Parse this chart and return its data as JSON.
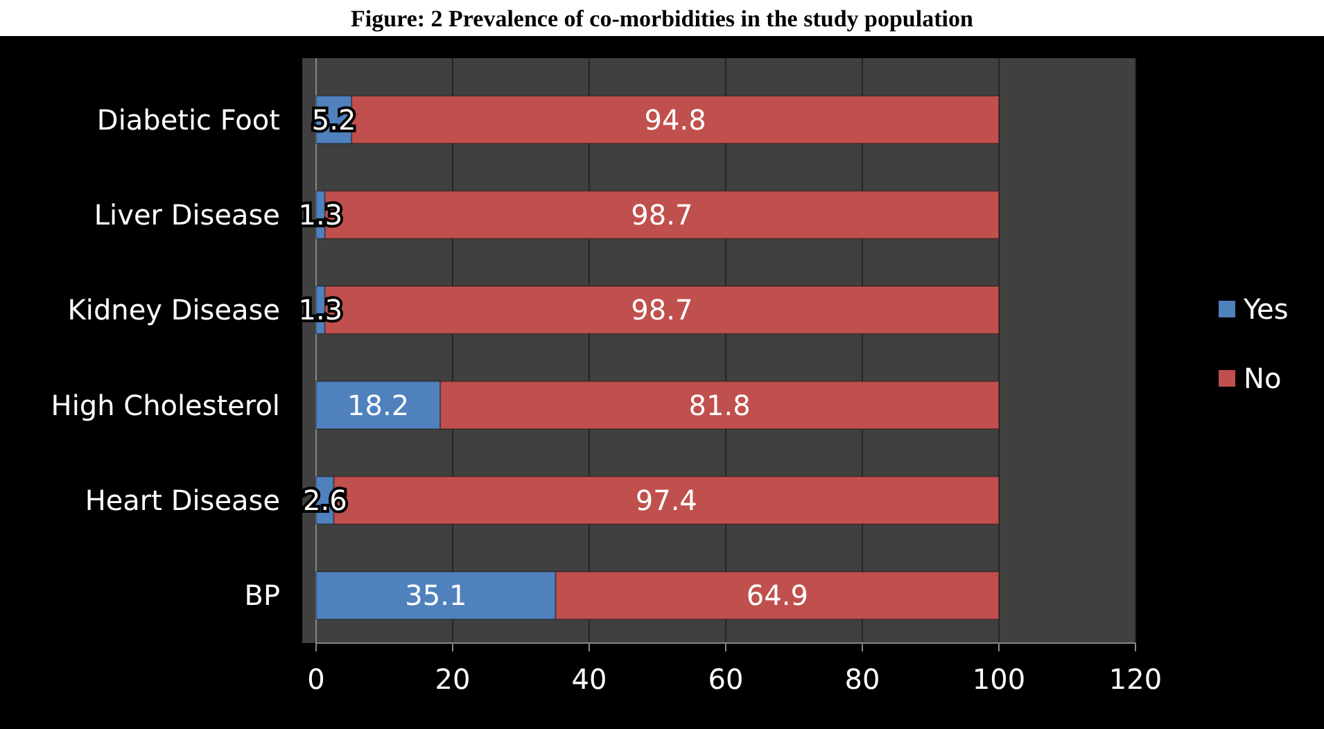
{
  "chart_data": {
    "type": "bar",
    "orientation": "horizontal",
    "stacked": true,
    "title": "Figure: 2 Prevalence of co-morbidities in the study population",
    "categories": [
      "Diabetic Foot",
      "Liver Disease",
      "Kidney Disease",
      "High Cholesterol",
      "Heart Disease",
      "BP"
    ],
    "series": [
      {
        "name": "Yes",
        "color": "#4f81bd",
        "values": [
          5.2,
          1.3,
          1.3,
          18.2,
          2.6,
          35.1
        ]
      },
      {
        "name": "No",
        "color": "#c0504d",
        "values": [
          94.8,
          98.7,
          98.7,
          81.8,
          97.4,
          64.9
        ]
      }
    ],
    "xlim": [
      0,
      120
    ],
    "xticks": [
      0,
      20,
      40,
      60,
      80,
      100,
      120
    ],
    "grid": "x",
    "legend": "right",
    "data_labels": true
  }
}
